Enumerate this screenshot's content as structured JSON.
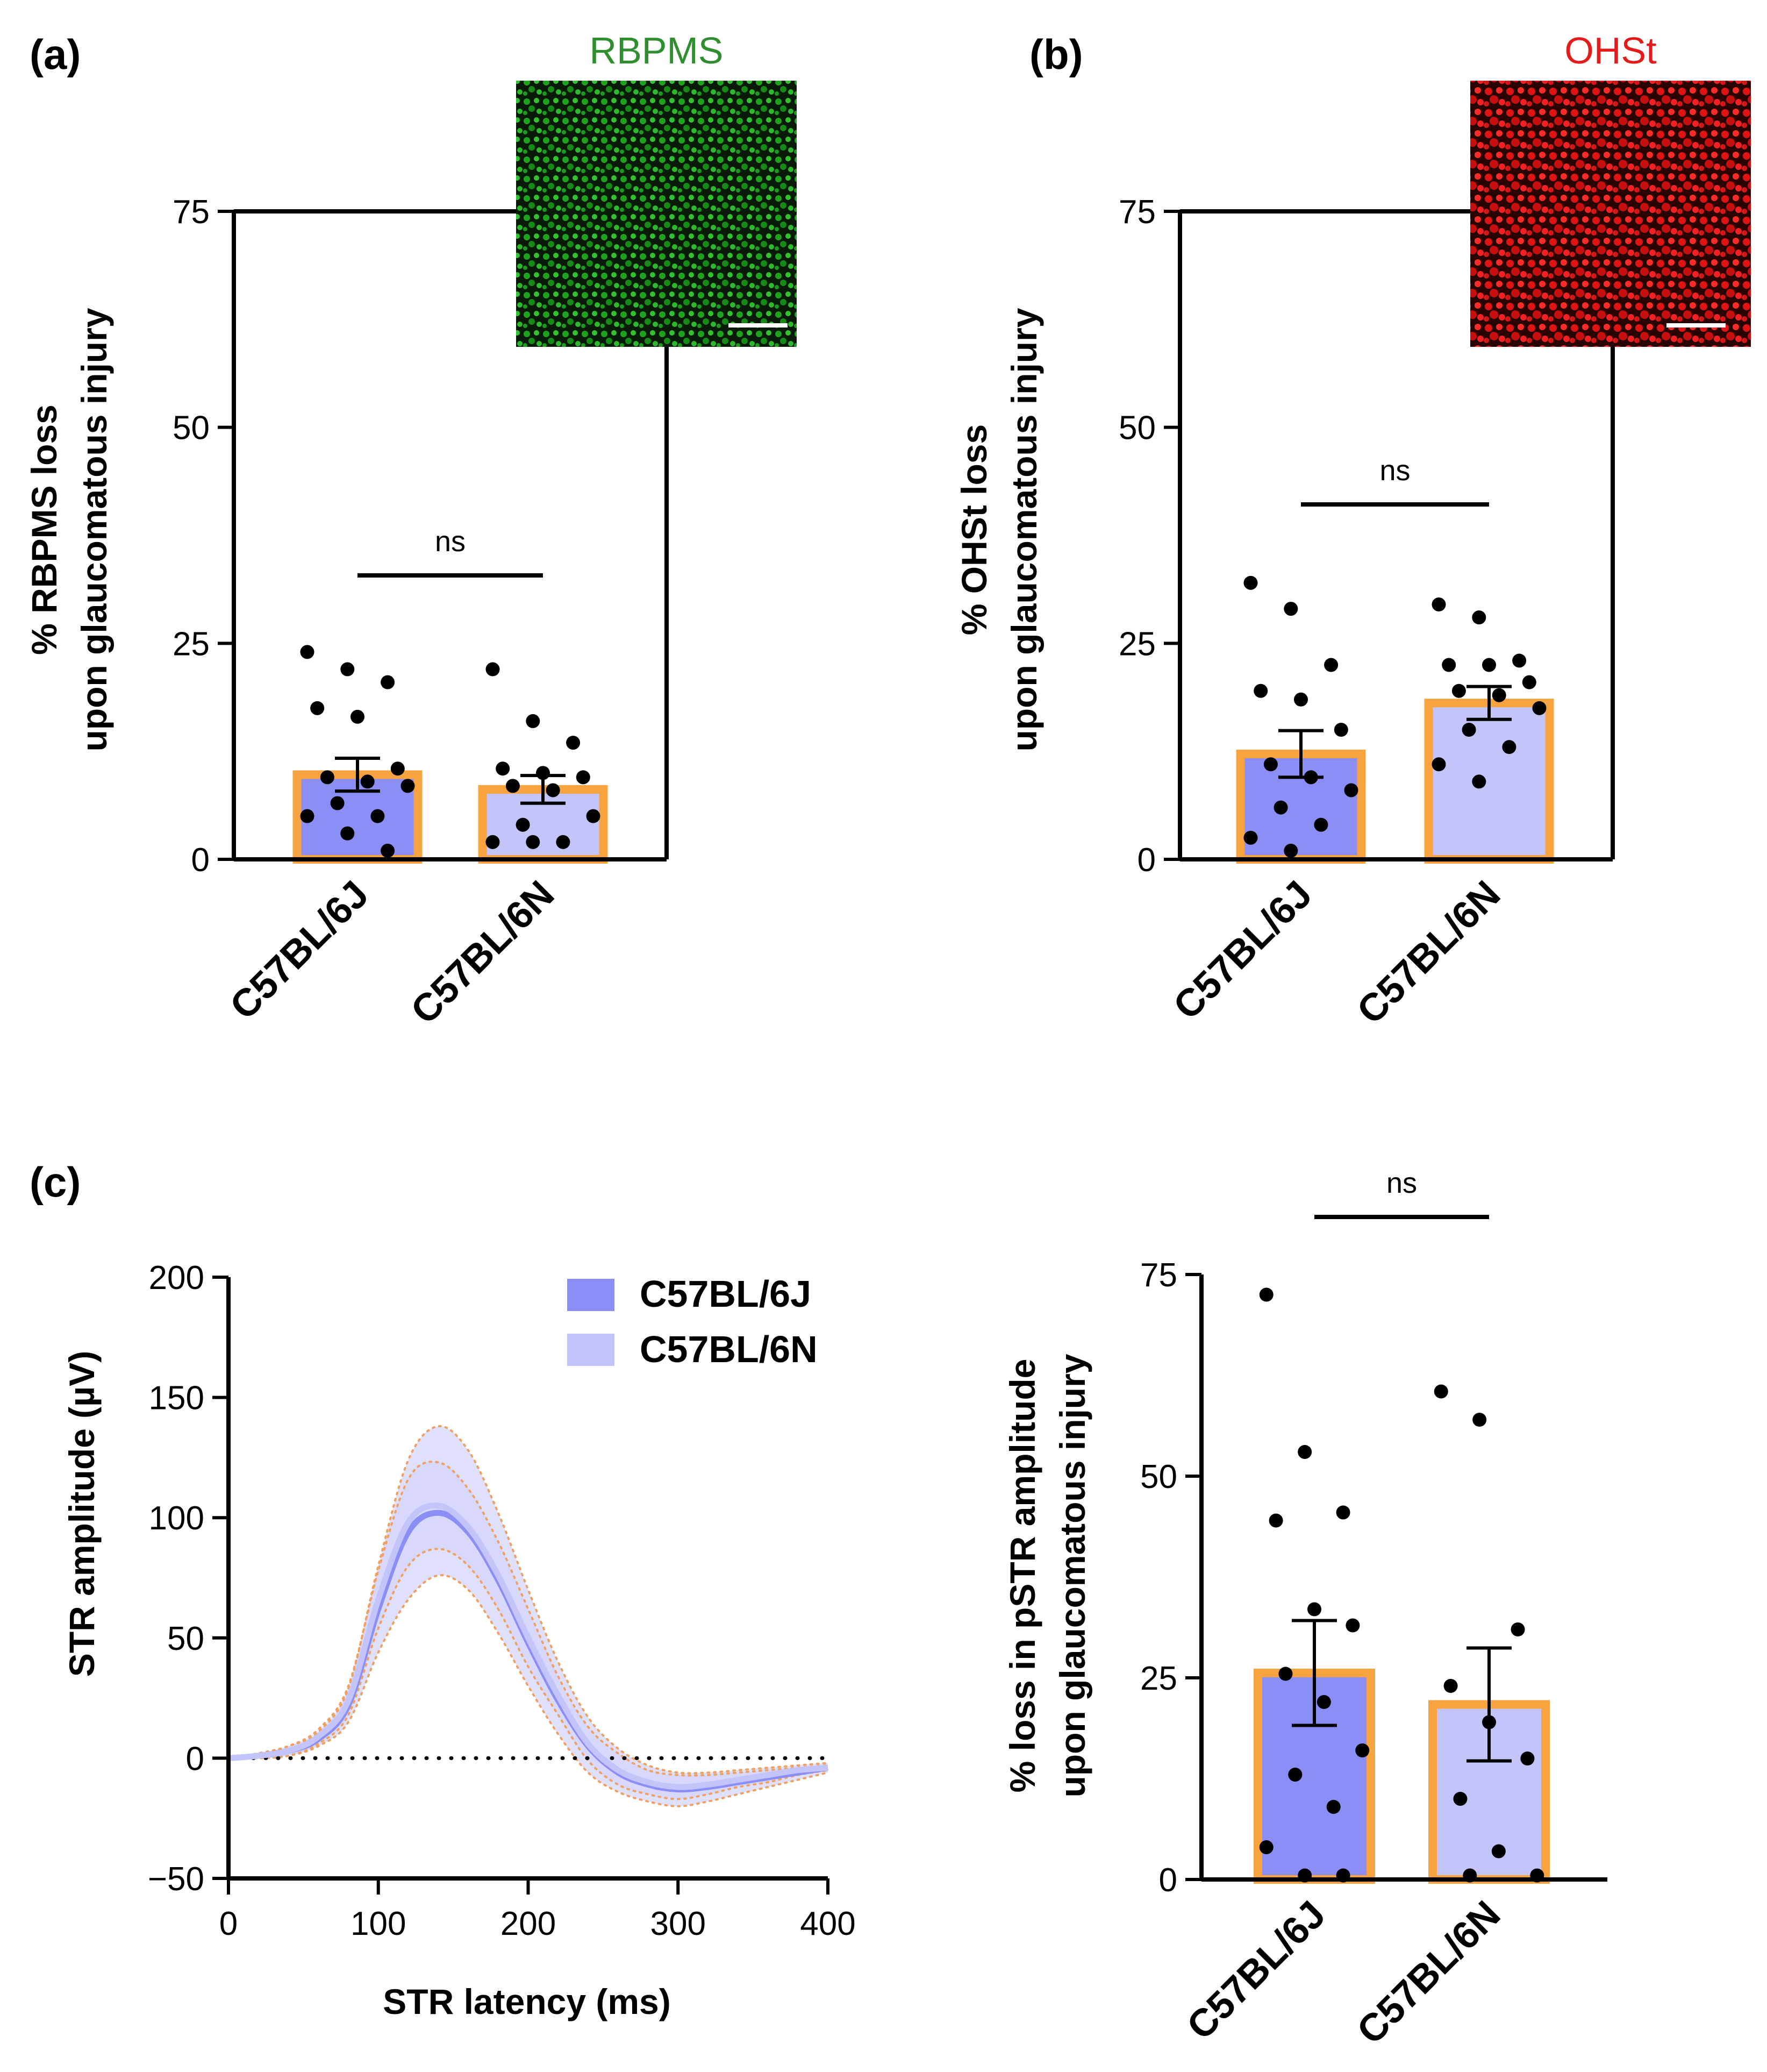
{
  "colors": {
    "bar_6j": "#8b8ef4",
    "bar_6n": "#c3c5fa",
    "bar_border": "#f7a440",
    "green_label": "#2f8f2f",
    "red_label": "#e31b1b",
    "curve_6j": "#8b8ef4",
    "curve_6n": "#c3c5fa",
    "ci_dotted": "#f0a060",
    "axis": "#000000"
  },
  "chart_data": [
    {
      "id": "a",
      "panel_label": "(a)",
      "type": "bar",
      "inset_label": "RBPMS",
      "inset_color": "green",
      "ylabel_line1": "% RBPMS loss",
      "ylabel_line2": "upon glaucomatous injury",
      "ylim": [
        0,
        75
      ],
      "yticks": [
        "0",
        "25",
        "50",
        "75"
      ],
      "ytick_values": [
        0,
        25,
        50,
        75
      ],
      "categories": [
        "C57BL/6J",
        "C57BL/6N"
      ],
      "means": [
        9.8,
        8.1
      ],
      "sem": [
        1.9,
        1.6
      ],
      "points": [
        [
          24,
          22,
          20.5,
          17.5,
          16.5,
          10.5,
          9.5,
          9,
          8.5,
          6.5,
          5,
          5,
          3,
          1
        ],
        [
          22,
          16,
          13.5,
          10.5,
          10,
          9.5,
          8.5,
          8,
          5,
          4,
          2,
          2,
          2
        ]
      ],
      "significance": "ns"
    },
    {
      "id": "b",
      "panel_label": "(b)",
      "type": "bar",
      "inset_label": "OHSt",
      "inset_color": "red",
      "ylabel_line1": "% OHSt loss",
      "ylabel_line2": "upon glaucomatous injury",
      "ylim": [
        0,
        75
      ],
      "yticks": [
        "0",
        "25",
        "50",
        "75"
      ],
      "ytick_values": [
        0,
        25,
        50,
        75
      ],
      "categories": [
        "C57BL/6J",
        "C57BL/6N"
      ],
      "means": [
        12.2,
        18.1
      ],
      "sem": [
        2.7,
        1.9
      ],
      "points": [
        [
          32,
          29,
          22.5,
          19.5,
          18.5,
          15,
          11,
          9.5,
          8,
          6,
          4,
          2.5,
          1
        ],
        [
          29.5,
          28,
          23,
          22.5,
          22.5,
          20.5,
          19.5,
          19,
          17.5,
          15,
          13,
          11,
          9
        ]
      ],
      "significance": "ns"
    },
    {
      "id": "c_line",
      "panel_label": "(c)",
      "type": "line",
      "xlabel": "STR latency (ms)",
      "ylabel": "STR amplitude (µV)",
      "xlim": [
        0,
        400
      ],
      "ylim": [
        -50,
        200
      ],
      "xticks": [
        "0",
        "100",
        "200",
        "300",
        "400"
      ],
      "xtick_values": [
        0,
        100,
        200,
        300,
        400
      ],
      "yticks": [
        "−50",
        "0",
        "50",
        "100",
        "150",
        "200"
      ],
      "ytick_values": [
        -50,
        0,
        50,
        100,
        150,
        200
      ],
      "x": [
        0,
        20,
        40,
        60,
        80,
        100,
        120,
        140,
        160,
        180,
        200,
        220,
        240,
        260,
        280,
        300,
        320,
        340,
        360,
        380,
        400
      ],
      "series": [
        {
          "name": "C57BL/6J",
          "values": [
            0,
            1,
            3,
            8,
            22,
            62,
            94,
            102,
            94,
            74,
            48,
            24,
            5,
            -6,
            -11,
            -13,
            -12,
            -10,
            -8,
            -6,
            -4
          ],
          "upper": [
            0,
            2,
            5,
            11,
            29,
            80,
            124,
            138,
            128,
            102,
            70,
            40,
            17,
            4,
            -3,
            -6,
            -6,
            -5,
            -4,
            -3,
            -2
          ],
          "lower": [
            0,
            0,
            1,
            5,
            15,
            44,
            66,
            76,
            70,
            52,
            30,
            10,
            -6,
            -14,
            -18,
            -20,
            -18,
            -15,
            -12,
            -9,
            -6
          ]
        },
        {
          "name": "C57BL/6N",
          "values": [
            0,
            1,
            3,
            9,
            24,
            66,
            98,
            105,
            96,
            76,
            50,
            26,
            6,
            -5,
            -10,
            -12,
            -11,
            -9,
            -7,
            -5,
            -4
          ],
          "upper": [
            0,
            2,
            5,
            12,
            30,
            78,
            116,
            123,
            112,
            90,
            62,
            34,
            13,
            2,
            -5,
            -7,
            -7,
            -6,
            -5,
            -4,
            -3
          ],
          "lower": [
            0,
            0,
            1,
            6,
            18,
            54,
            80,
            87,
            80,
            62,
            38,
            18,
            -1,
            -11,
            -15,
            -17,
            -15,
            -12,
            -10,
            -7,
            -5
          ]
        }
      ],
      "zero_line": true
    },
    {
      "id": "c_bar",
      "type": "bar",
      "ylabel_line1": "% loss in pSTR amplitude",
      "ylabel_line2": "upon glaucomatous injury",
      "ylim": [
        0,
        75
      ],
      "yticks": [
        "0",
        "25",
        "50",
        "75"
      ],
      "ytick_values": [
        0,
        25,
        50,
        75
      ],
      "categories": [
        "C57BL/6J",
        "C57BL/6N"
      ],
      "means": [
        25.6,
        21.7
      ],
      "sem": [
        6.5,
        7.0
      ],
      "points": [
        [
          72.5,
          53,
          45.5,
          44.5,
          33.5,
          31.5,
          25.5,
          22,
          16,
          13,
          9,
          4,
          0.5,
          0.5
        ],
        [
          60.5,
          57,
          31,
          24,
          19.5,
          15,
          10,
          3.5,
          0.5,
          0.5
        ]
      ],
      "significance": "ns"
    }
  ]
}
